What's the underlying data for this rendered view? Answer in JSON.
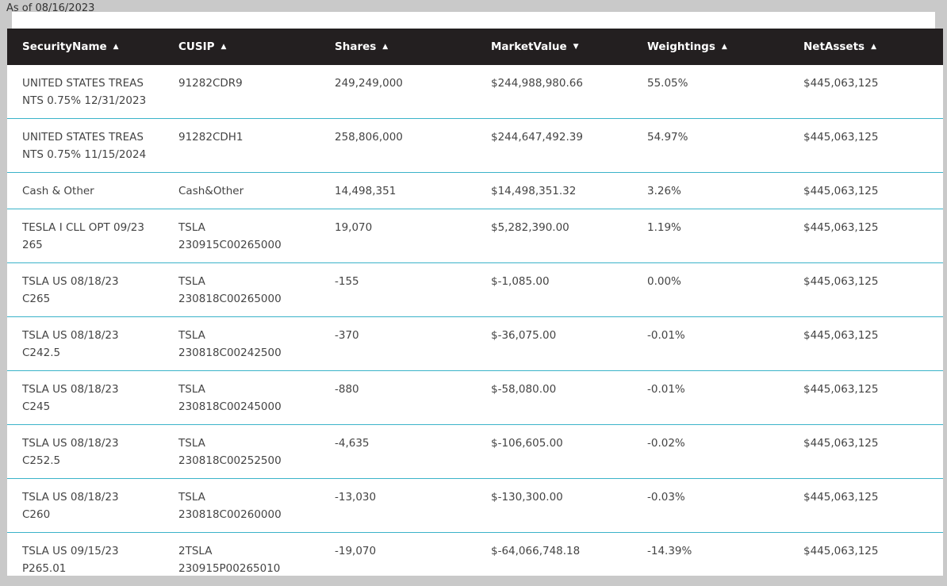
{
  "as_of": "As of 08/16/2023",
  "headers": [
    {
      "label": "SecurityName",
      "sort": "▲"
    },
    {
      "label": "CUSIP",
      "sort": "▲"
    },
    {
      "label": "Shares",
      "sort": "▲"
    },
    {
      "label": "MarketValue",
      "sort": "▼"
    },
    {
      "label": "Weightings",
      "sort": "▲"
    },
    {
      "label": "NetAssets",
      "sort": "▲"
    }
  ],
  "rows": [
    {
      "name": "UNITED STATES TREAS\nNTS 0.75% 12/31/2023",
      "cusip": "91282CDR9",
      "shares": "249,249,000",
      "market_value": "$244,988,980.66",
      "weighting": "55.05%",
      "net_assets": "$445,063,125"
    },
    {
      "name": "UNITED STATES TREAS\nNTS 0.75% 11/15/2024",
      "cusip": "91282CDH1",
      "shares": "258,806,000",
      "market_value": "$244,647,492.39",
      "weighting": "54.97%",
      "net_assets": "$445,063,125"
    },
    {
      "name": "Cash & Other",
      "cusip": "Cash&Other",
      "shares": "14,498,351",
      "market_value": "$14,498,351.32",
      "weighting": "3.26%",
      "net_assets": "$445,063,125"
    },
    {
      "name": "TESLA I CLL OPT 09/23\n265",
      "cusip": "TSLA\n230915C00265000",
      "shares": "19,070",
      "market_value": "$5,282,390.00",
      "weighting": "1.19%",
      "net_assets": "$445,063,125"
    },
    {
      "name": "TSLA US 08/18/23\nC265",
      "cusip": "TSLA\n230818C00265000",
      "shares": "-155",
      "market_value": "$-1,085.00",
      "weighting": "0.00%",
      "net_assets": "$445,063,125"
    },
    {
      "name": "TSLA US 08/18/23\nC242.5",
      "cusip": "TSLA\n230818C00242500",
      "shares": "-370",
      "market_value": "$-36,075.00",
      "weighting": "-0.01%",
      "net_assets": "$445,063,125"
    },
    {
      "name": "TSLA US 08/18/23\nC245",
      "cusip": "TSLA\n230818C00245000",
      "shares": "-880",
      "market_value": "$-58,080.00",
      "weighting": "-0.01%",
      "net_assets": "$445,063,125"
    },
    {
      "name": "TSLA US 08/18/23\nC252.5",
      "cusip": "TSLA\n230818C00252500",
      "shares": "-4,635",
      "market_value": "$-106,605.00",
      "weighting": "-0.02%",
      "net_assets": "$445,063,125"
    },
    {
      "name": "TSLA US 08/18/23\nC260",
      "cusip": "TSLA\n230818C00260000",
      "shares": "-13,030",
      "market_value": "$-130,300.00",
      "weighting": "-0.03%",
      "net_assets": "$445,063,125"
    },
    {
      "name": "TSLA US 09/15/23\nP265.01",
      "cusip": "2TSLA\n230915P00265010",
      "shares": "-19,070",
      "market_value": "$-64,066,748.18",
      "weighting": "-14.39%",
      "net_assets": "$445,063,125"
    }
  ]
}
